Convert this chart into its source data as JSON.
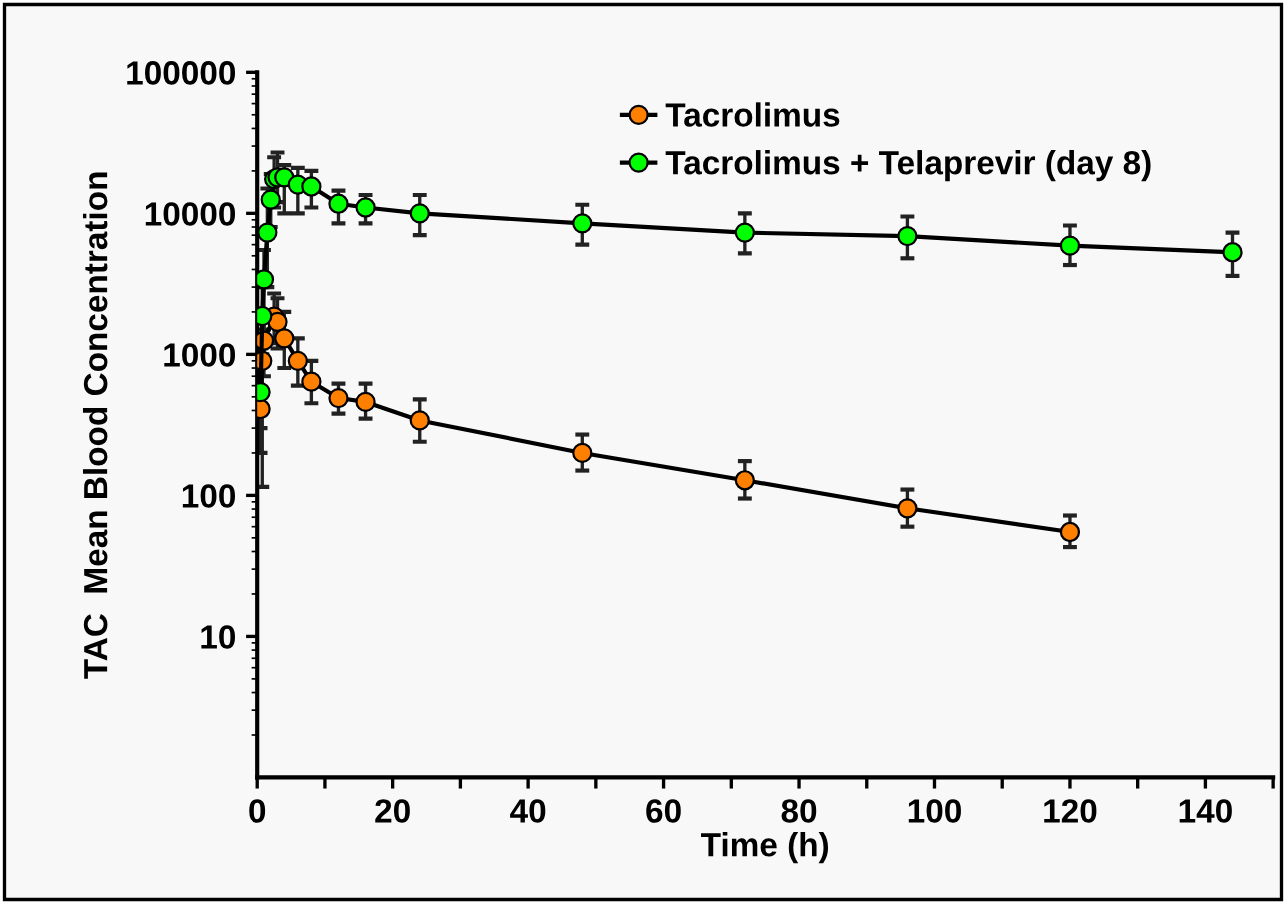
{
  "chart_data": {
    "type": "line",
    "xlabel": "Time (h)",
    "ylabel": "TAC  Mean Blood Concentration",
    "log": "y",
    "xlim": [
      0,
      150
    ],
    "xticks": [
      0,
      {
        "value": 10,
        "label": null
      },
      20,
      {
        "value": 30,
        "label": null
      },
      40,
      {
        "value": 50,
        "label": null
      },
      60,
      {
        "value": 70,
        "label": null
      },
      80,
      {
        "value": 90,
        "label": null
      },
      100,
      {
        "value": 110,
        "label": null
      },
      120,
      {
        "value": 130,
        "label": null
      },
      140,
      {
        "value": 150,
        "label": null
      }
    ],
    "ylim": [
      1,
      100000
    ],
    "yticks": [
      10,
      100,
      1000,
      10000,
      100000
    ],
    "legend": "top",
    "marker": "circle",
    "line_style": "solid",
    "grid": false,
    "series": [
      {
        "name": "Tacrolimus",
        "color": "#ff8000",
        "x": [
          0.5,
          0.75,
          1,
          2.5,
          3,
          4,
          6,
          8,
          12,
          16,
          24,
          48,
          72,
          96,
          120
        ],
        "values": [
          410,
          900,
          1250,
          1850,
          1700,
          1300,
          900,
          640,
          490,
          460,
          340,
          200,
          128,
          81,
          55
        ],
        "errors": [
          [
            300,
            560
          ],
          [
            115,
            1700
          ],
          [
            700,
            1900
          ],
          [
            1200,
            2700
          ],
          [
            1100,
            2500
          ],
          [
            800,
            2000
          ],
          [
            600,
            1300
          ],
          [
            450,
            900
          ],
          [
            380,
            620
          ],
          [
            350,
            620
          ],
          [
            240,
            480
          ],
          [
            150,
            270
          ],
          [
            95,
            175
          ],
          [
            60,
            110
          ],
          [
            43,
            72
          ]
        ]
      },
      {
        "name": "Tacrolimus + Telaprevir (day 8)",
        "color": "#00ff00",
        "x": [
          0.5,
          0.75,
          1,
          1.5,
          2,
          2.5,
          3,
          4,
          6,
          8,
          12,
          16,
          24,
          48,
          72,
          96,
          120,
          144
        ],
        "values": [
          540,
          1870,
          3400,
          7300,
          12500,
          17500,
          18000,
          18000,
          16000,
          15500,
          11700,
          11000,
          10000,
          8500,
          7300,
          6900,
          5900,
          5300
        ],
        "errors": [
          [
            200,
            1100
          ],
          [
            1000,
            3000
          ],
          [
            1500,
            5500
          ],
          [
            3000,
            15000
          ],
          [
            8000,
            19000
          ],
          [
            11000,
            25000
          ],
          [
            12000,
            27000
          ],
          [
            10000,
            22000
          ],
          [
            10000,
            21000
          ],
          [
            11000,
            20000
          ],
          [
            8500,
            14500
          ],
          [
            8500,
            13500
          ],
          [
            7000,
            13500
          ],
          [
            6000,
            11500
          ],
          [
            5200,
            10000
          ],
          [
            4800,
            9500
          ],
          [
            4300,
            8200
          ],
          [
            3600,
            7300
          ]
        ]
      }
    ]
  }
}
